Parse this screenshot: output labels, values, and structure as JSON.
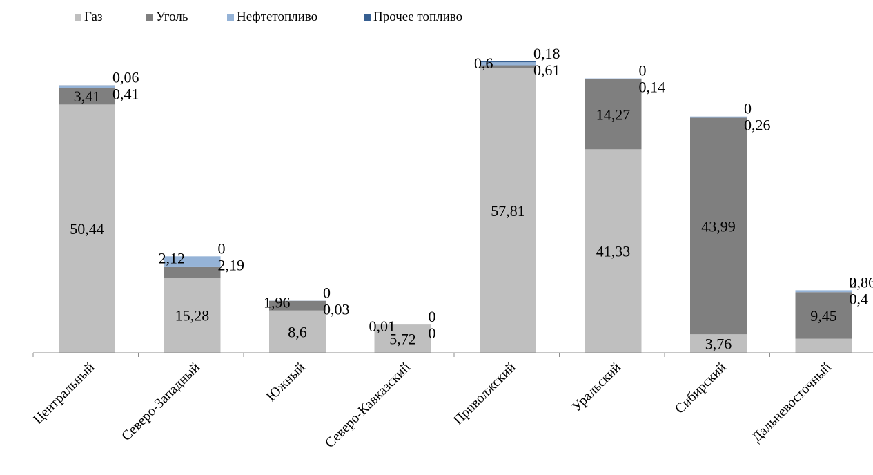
{
  "chart_data": {
    "type": "bar",
    "stacked": true,
    "title": "",
    "xlabel": "",
    "ylabel": "",
    "ylim": [
      0,
      60
    ],
    "grid": false,
    "legend_position": "top-left",
    "categories": [
      "Центральный",
      "Северо-Западный",
      "Южный",
      "Северо-Кавказский",
      "Приволжский",
      "Уральский",
      "Сибирский",
      "Дальневосточный"
    ],
    "series": [
      {
        "name": "Газ",
        "color": "#bfbfbf",
        "values": [
          50.44,
          15.28,
          8.6,
          5.72,
          57.81,
          41.33,
          3.76,
          2.86
        ],
        "labels": [
          "50,44",
          "15,28",
          "8,6",
          "5,72",
          "57,81",
          "41,33",
          "3,76",
          "2,86"
        ]
      },
      {
        "name": "Уголь",
        "color": "#7f7f7f",
        "values": [
          3.41,
          2.12,
          1.96,
          0.01,
          0.6,
          14.27,
          43.99,
          9.45
        ],
        "labels": [
          "3,41",
          "2,12",
          "1,96",
          "0,01",
          "0,6",
          "14,27",
          "43,99",
          "9,45"
        ]
      },
      {
        "name": "Нефтетопливо",
        "color": "#95b3d7",
        "values": [
          0.41,
          2.19,
          0.03,
          0,
          0.61,
          0.14,
          0.26,
          0.4
        ],
        "labels": [
          "0,41",
          "2,19",
          "0,03",
          "0",
          "0,61",
          "0,14",
          "0,26",
          "0,4"
        ]
      },
      {
        "name": "Прочее топливо",
        "color": "#365f91",
        "values": [
          0.06,
          0,
          0,
          0,
          0.18,
          0,
          0,
          0
        ],
        "labels": [
          "0,06",
          "0",
          "0",
          "0",
          "0,18",
          "0",
          "0",
          "0"
        ]
      }
    ]
  }
}
